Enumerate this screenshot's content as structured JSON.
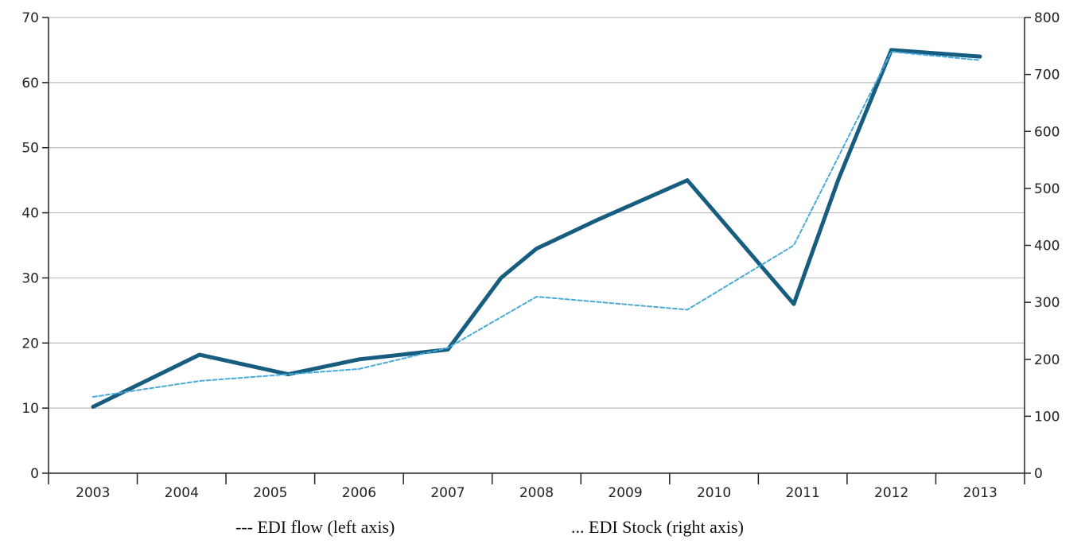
{
  "chart_data": {
    "type": "line",
    "categories": [
      "2003",
      "2004",
      "2005",
      "2006",
      "2007",
      "2008",
      "2009",
      "2010",
      "2011",
      "2012",
      "2013"
    ],
    "series": [
      {
        "name": "EDI flow (left axis)",
        "axis": "left",
        "x": [
          2003,
          2004.2,
          2005.2,
          2006,
          2007,
          2007.6,
          2008,
          2008.7,
          2009.7,
          2010.9,
          2011.4,
          2012,
          2013
        ],
        "values": [
          10.2,
          18.2,
          15.2,
          17.5,
          19,
          30,
          34.5,
          39,
          45,
          26,
          45,
          65,
          64
        ],
        "color": "#165d7f"
      },
      {
        "name": "EDI Stock (right axis)",
        "axis": "right",
        "x": [
          2003,
          2004.2,
          2006,
          2007,
          2008,
          2009.7,
          2010.9,
          2012,
          2013
        ],
        "values": [
          134,
          162,
          183,
          220,
          310,
          287,
          400,
          740,
          725
        ],
        "color": "#4aaad8"
      }
    ],
    "left_axis": {
      "min": 0,
      "max": 70,
      "ticks": [
        "0",
        "10",
        "20",
        "30",
        "40",
        "50",
        "60",
        "70"
      ]
    },
    "right_axis": {
      "min": 0,
      "max": 800,
      "ticks": [
        "0",
        "100",
        "200",
        "300",
        "400",
        "500",
        "600",
        "700",
        "800"
      ]
    },
    "x_ticks": [
      "2003",
      "2004",
      "2005",
      "2006",
      "2007",
      "2008",
      "2009",
      "2010",
      "2011",
      "2012",
      "2013"
    ],
    "grid": true,
    "legend": {
      "position": "bottom",
      "items": [
        {
          "marker": "---",
          "label": "EDI flow (left axis)"
        },
        {
          "marker": "...",
          "label": "EDI Stock (right axis)"
        }
      ]
    }
  }
}
